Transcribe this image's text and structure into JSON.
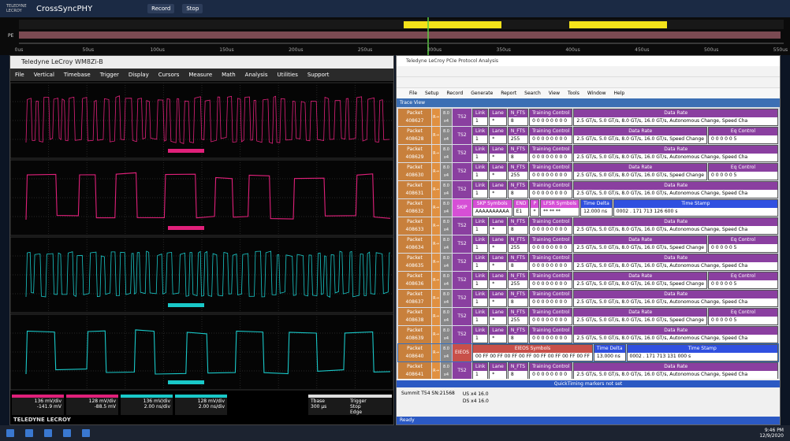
{
  "topbar": {
    "brand": "TELEDYNE LECROY",
    "app": "CrossSyncPHY",
    "record": "Record",
    "stop": "Stop"
  },
  "timing": {
    "lane": "PE",
    "axis": [
      "0us",
      "50us",
      "100us",
      "150us",
      "200us",
      "250us",
      "300us",
      "350us",
      "400us",
      "450us",
      "500us",
      "550us"
    ]
  },
  "scope": {
    "title": "Teledyne LeCroy WM8Zi-B",
    "menu": [
      "File",
      "Vertical",
      "Timebase",
      "Trigger",
      "Display",
      "Cursors",
      "Measure",
      "Math",
      "Analysis",
      "Utilities",
      "Support"
    ],
    "channels": [
      {
        "scale": "136 mV/div",
        "offset": "-141.9 mV",
        "color": "#e0207a"
      },
      {
        "scale": "128 mV/div",
        "offset": "-88.5 mV",
        "color": "#e0207a"
      },
      {
        "scale": "136 mV/div",
        "offset": "2.00 ns/div",
        "color": "#19c8c8"
      },
      {
        "scale": "128 mV/div",
        "offset": "2.00 ns/div",
        "color": "#19c8c8"
      }
    ],
    "timebase": {
      "label": "Tbase",
      "value": "300 µs",
      "trigger": "Trigger",
      "mode": "Stop",
      "type": "Edge"
    },
    "footer": "TELEDYNE LECROY"
  },
  "analyzer": {
    "title": "Teledyne LeCroy PCIe Protocol Analysis",
    "menu": [
      "File",
      "Setup",
      "Record",
      "Generate",
      "Report",
      "Search",
      "View",
      "Tools",
      "Window",
      "Help"
    ],
    "view": "Trace View",
    "packet_label": "Packet",
    "direction": "R→",
    "speed": "8.0",
    "width": "x4",
    "packets": [
      {
        "number": "408627",
        "type": "TS2",
        "color": "#8a3fa0",
        "cells": [
          {
            "label": "Link",
            "value": "1"
          },
          {
            "label": "Lane",
            "value": "*"
          },
          {
            "label": "N_FTS",
            "value": "8"
          },
          {
            "label": "Training Control",
            "value": "0 0 0 0 0 0 0 0"
          },
          {
            "label": "Data Rate",
            "value": "2.5 GT/s, 5.0 GT/s, 8.0 GT/s, 16.0 GT/s, Autonomous Change, Speed Cha"
          }
        ]
      },
      {
        "number": "408628",
        "type": "TS2",
        "color": "#8a3fa0",
        "cells": [
          {
            "label": "Link",
            "value": "1"
          },
          {
            "label": "Lane",
            "value": "*"
          },
          {
            "label": "N_FTS",
            "value": "255"
          },
          {
            "label": "Training Control",
            "value": "0 0 0 0 0 0 0 0"
          },
          {
            "label": "Data Rate",
            "value": "2.5 GT/s, 5.0 GT/s, 8.0 GT/s, 16.0 GT/s, Speed Change"
          },
          {
            "label": "Eq Control",
            "value": "0 0 0 0 0 5"
          }
        ]
      },
      {
        "number": "408629",
        "type": "TS2",
        "color": "#8a3fa0",
        "cells": [
          {
            "label": "Link",
            "value": "1"
          },
          {
            "label": "Lane",
            "value": "*"
          },
          {
            "label": "N_FTS",
            "value": "8"
          },
          {
            "label": "Training Control",
            "value": "0 0 0 0 0 0 0 0"
          },
          {
            "label": "Data Rate",
            "value": "2.5 GT/s, 5.0 GT/s, 8.0 GT/s, 16.0 GT/s, Autonomous Change, Speed Cha"
          }
        ]
      },
      {
        "number": "408630",
        "type": "TS2",
        "color": "#8a3fa0",
        "cells": [
          {
            "label": "Link",
            "value": "1"
          },
          {
            "label": "Lane",
            "value": "*"
          },
          {
            "label": "N_FTS",
            "value": "255"
          },
          {
            "label": "Training Control",
            "value": "0 0 0 0 0 0 0 0"
          },
          {
            "label": "Data Rate",
            "value": "2.5 GT/s, 5.0 GT/s, 8.0 GT/s, 16.0 GT/s, Speed Change"
          },
          {
            "label": "Eq Control",
            "value": "0 0 0 0 0 5"
          }
        ]
      },
      {
        "number": "408631",
        "type": "TS2",
        "color": "#8a3fa0",
        "cells": [
          {
            "label": "Link",
            "value": "1"
          },
          {
            "label": "Lane",
            "value": "*"
          },
          {
            "label": "N_FTS",
            "value": "8"
          },
          {
            "label": "Training Control",
            "value": "0 0 0 0 0 0 0 0"
          },
          {
            "label": "Data Rate",
            "value": "2.5 GT/s, 5.0 GT/s, 8.0 GT/s, 16.0 GT/s, Autonomous Change, Speed Cha"
          }
        ]
      },
      {
        "number": "408632",
        "type": "SKIP",
        "color": "#d64fd6",
        "cells": [
          {
            "label": "SKP Symbols",
            "value": "AAAAAAAAAA"
          },
          {
            "label": "END",
            "value": "E1"
          },
          {
            "label": "P",
            "value": "*"
          },
          {
            "label": "LFSR Symbols",
            "value": "** ** **"
          },
          {
            "label": "Time Delta",
            "value": "12.000 ns",
            "color": "#3050e0"
          },
          {
            "label": "Time Stamp",
            "value": "0002 . 171 713 126 600 s",
            "color": "#3050e0"
          }
        ]
      },
      {
        "number": "408633",
        "type": "TS2",
        "color": "#8a3fa0",
        "cells": [
          {
            "label": "Link",
            "value": "1"
          },
          {
            "label": "Lane",
            "value": "*"
          },
          {
            "label": "N_FTS",
            "value": "8"
          },
          {
            "label": "Training Control",
            "value": "0 0 0 0 0 0 0 0"
          },
          {
            "label": "Data Rate",
            "value": "2.5 GT/s, 5.0 GT/s, 8.0 GT/s, 16.0 GT/s, Autonomous Change, Speed Cha"
          }
        ]
      },
      {
        "number": "408634",
        "type": "TS2",
        "color": "#8a3fa0",
        "cells": [
          {
            "label": "Link",
            "value": "1"
          },
          {
            "label": "Lane",
            "value": "*"
          },
          {
            "label": "N_FTS",
            "value": "255"
          },
          {
            "label": "Training Control",
            "value": "0 0 0 0 0 0 0 0"
          },
          {
            "label": "Data Rate",
            "value": "2.5 GT/s, 5.0 GT/s, 8.0 GT/s, 16.0 GT/s, Speed Change"
          },
          {
            "label": "Eq Control",
            "value": "0 0 0 0 0 5"
          }
        ]
      },
      {
        "number": "408635",
        "type": "TS2",
        "color": "#8a3fa0",
        "cells": [
          {
            "label": "Link",
            "value": "1"
          },
          {
            "label": "Lane",
            "value": "*"
          },
          {
            "label": "N_FTS",
            "value": "8"
          },
          {
            "label": "Training Control",
            "value": "0 0 0 0 0 0 0 0"
          },
          {
            "label": "Data Rate",
            "value": "2.5 GT/s, 5.0 GT/s, 8.0 GT/s, 16.0 GT/s, Autonomous Change, Speed Cha"
          }
        ]
      },
      {
        "number": "408636",
        "type": "TS2",
        "color": "#8a3fa0",
        "cells": [
          {
            "label": "Link",
            "value": "1"
          },
          {
            "label": "Lane",
            "value": "*"
          },
          {
            "label": "N_FTS",
            "value": "255"
          },
          {
            "label": "Training Control",
            "value": "0 0 0 0 0 0 0 0"
          },
          {
            "label": "Data Rate",
            "value": "2.5 GT/s, 5.0 GT/s, 8.0 GT/s, 16.0 GT/s, Speed Change"
          },
          {
            "label": "Eq Control",
            "value": "0 0 0 0 0 5"
          }
        ]
      },
      {
        "number": "408637",
        "type": "TS2",
        "color": "#8a3fa0",
        "cells": [
          {
            "label": "Link",
            "value": "1"
          },
          {
            "label": "Lane",
            "value": "*"
          },
          {
            "label": "N_FTS",
            "value": "8"
          },
          {
            "label": "Training Control",
            "value": "0 0 0 0 0 0 0 0"
          },
          {
            "label": "Data Rate",
            "value": "2.5 GT/s, 5.0 GT/s, 8.0 GT/s, 16.0 GT/s, Autonomous Change, Speed Cha"
          }
        ]
      },
      {
        "number": "408638",
        "type": "TS2",
        "color": "#8a3fa0",
        "cells": [
          {
            "label": "Link",
            "value": "1"
          },
          {
            "label": "Lane",
            "value": "*"
          },
          {
            "label": "N_FTS",
            "value": "255"
          },
          {
            "label": "Training Control",
            "value": "0 0 0 0 0 0 0 0"
          },
          {
            "label": "Data Rate",
            "value": "2.5 GT/s, 5.0 GT/s, 8.0 GT/s, 16.0 GT/s, Speed Change"
          },
          {
            "label": "Eq Control",
            "value": "0 0 0 0 0 5"
          }
        ]
      },
      {
        "number": "408639",
        "type": "TS2",
        "color": "#8a3fa0",
        "cells": [
          {
            "label": "Link",
            "value": "1"
          },
          {
            "label": "Lane",
            "value": "*"
          },
          {
            "label": "N_FTS",
            "value": "8"
          },
          {
            "label": "Training Control",
            "value": "0 0 0 0 0 0 0 0"
          },
          {
            "label": "Data Rate",
            "value": "2.5 GT/s, 5.0 GT/s, 8.0 GT/s, 16.0 GT/s, Autonomous Change, Speed Cha"
          }
        ]
      },
      {
        "number": "408640",
        "type": "EIEOS",
        "color": "#c8504a",
        "selected": true,
        "cells": [
          {
            "label": "EIEOS Symbols",
            "value": "00 FF 00 FF 00 FF 00 FF 00 FF 00 FF 00 FF 00 FF"
          },
          {
            "label": "Time Delta",
            "value": "13.000 ns",
            "color": "#3050e0"
          },
          {
            "label": "Time Stamp",
            "value": "0002 . 171 713 131 000 s",
            "color": "#3050e0"
          }
        ]
      },
      {
        "number": "408641",
        "type": "TS2",
        "color": "#8a3fa0",
        "cells": [
          {
            "label": "Link",
            "value": "1"
          },
          {
            "label": "Lane",
            "value": "*"
          },
          {
            "label": "N_FTS",
            "value": "8"
          },
          {
            "label": "Training Control",
            "value": "0 0 0 0 0 0 0 0"
          },
          {
            "label": "Data Rate",
            "value": "2.5 GT/s, 5.0 GT/s, 8.0 GT/s, 16.0 GT/s, Autonomous Change, Speed Cha"
          }
        ]
      }
    ],
    "markers": "QuickTiming markers not set",
    "device": "Summit T54 SN:21568",
    "links": [
      "US x4 16.0",
      "DS x4 16.0"
    ],
    "status": "Ready"
  },
  "taskbar": {
    "time": "9:46 PM",
    "date": "12/9/2020"
  }
}
